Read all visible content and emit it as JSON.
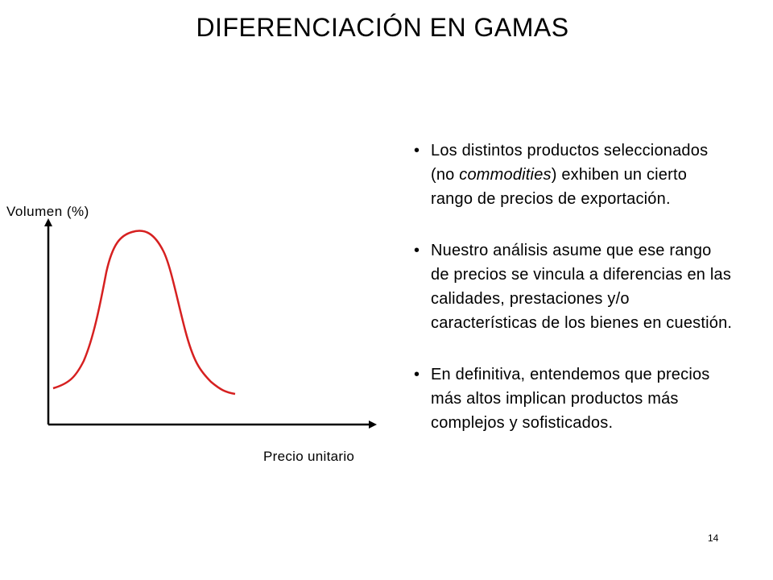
{
  "slide": {
    "title": "DIFERENCIACIÓN EN GAMAS",
    "page_number": "14"
  },
  "diagram": {
    "y_axis_label": "Volumen (%)",
    "x_axis_label": "Precio unitario",
    "curve_color": "#d62020",
    "axis_color": "#000000",
    "curve_shape": "bell"
  },
  "bullets": [
    {
      "before": "Los distintos productos seleccionados (no ",
      "emphasis": "commodities",
      "after": ") exhiben un cierto rango de precios de exportación."
    },
    {
      "before": "Nuestro análisis asume que ese rango de precios se vincula a diferencias en las calidades, prestaciones y/o características de los bienes en cuestión.",
      "emphasis": "",
      "after": ""
    },
    {
      "before": "En definitiva, entendemos que precios más altos implican productos más complejos y sofisticados.",
      "emphasis": "",
      "after": ""
    }
  ]
}
